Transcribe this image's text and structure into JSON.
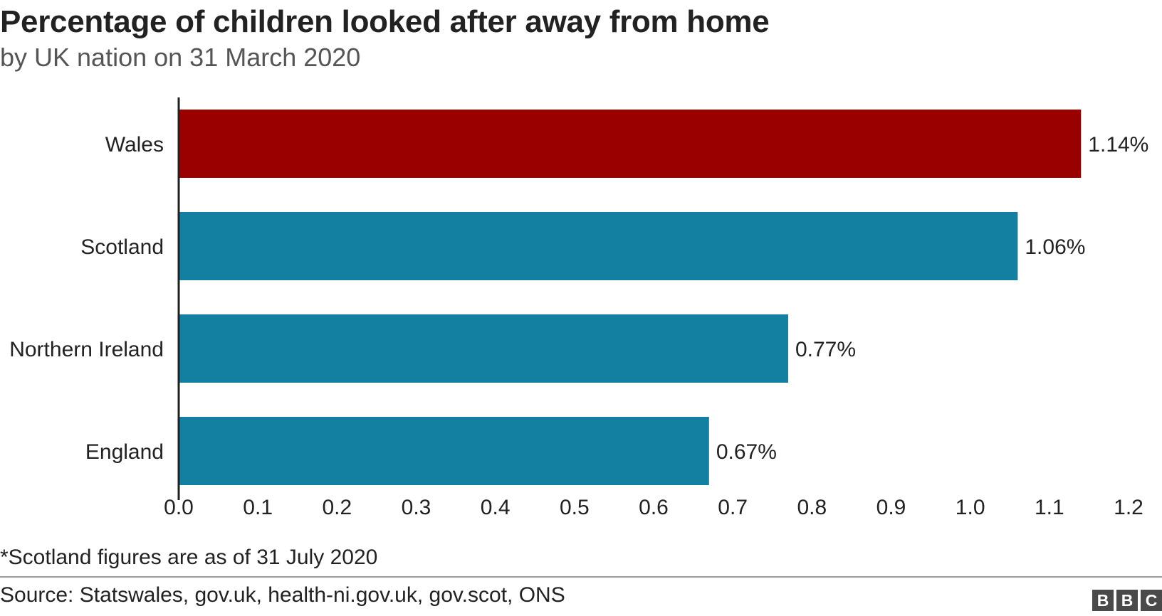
{
  "chart_data": {
    "type": "bar",
    "orientation": "horizontal",
    "title": "Percentage of children looked after away from home",
    "subtitle": "by UK nation on 31 March 2020",
    "categories": [
      "Wales",
      "Scotland",
      "Northern Ireland",
      "England"
    ],
    "values": [
      1.14,
      1.06,
      0.77,
      0.67
    ],
    "value_labels": [
      "1.14%",
      "1.06%",
      "0.77%",
      "0.67%"
    ],
    "bar_colors": [
      "#990000",
      "#1380A1",
      "#1380A1",
      "#1380A1"
    ],
    "xlim": [
      0,
      1.2
    ],
    "x_ticks": [
      0.0,
      0.1,
      0.2,
      0.3,
      0.4,
      0.5,
      0.6,
      0.7,
      0.8,
      0.9,
      1.0,
      1.1,
      1.2
    ],
    "x_tick_labels": [
      "0.0",
      "0.1",
      "0.2",
      "0.3",
      "0.4",
      "0.5",
      "0.6",
      "0.7",
      "0.8",
      "0.9",
      "1.0",
      "1.1",
      "1.2"
    ],
    "xlabel": "",
    "ylabel": "",
    "grid": false,
    "legend": "none"
  },
  "note": "*Scotland figures are as of 31 July 2020",
  "source": "Source: Statswales, gov.uk, health-ni.gov.uk, gov.scot, ONS",
  "logo": {
    "letters": [
      "B",
      "B",
      "C"
    ]
  }
}
